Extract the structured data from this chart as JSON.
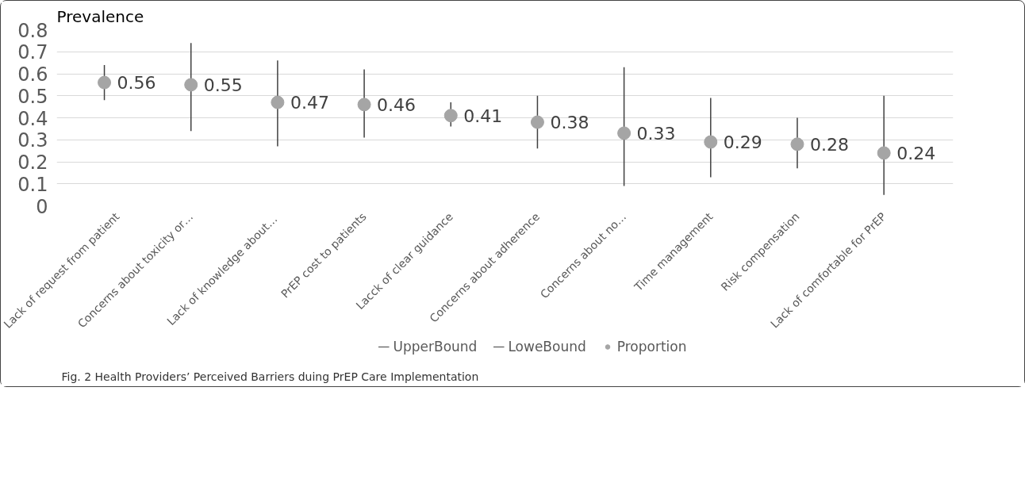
{
  "chart_data": {
    "type": "scatter",
    "ylabel": "Prevalence",
    "categories": [
      "Lack of request from patient",
      "Concerns about toxicity or…",
      "Lack of  knowledge about…",
      "PrEP cost to patients",
      "Lacck of clear guidance",
      "Concerns about adherence",
      "Concerns about no…",
      "Time management",
      "Risk compensation",
      "Lack of comfortable for PrEP"
    ],
    "series": [
      {
        "name": "UpperBound",
        "type": "line",
        "values": [
          null,
          null,
          null,
          null,
          null,
          null,
          null,
          null,
          null,
          null
        ]
      },
      {
        "name": "LoweBound",
        "type": "line",
        "values": [
          null,
          null,
          null,
          null,
          null,
          null,
          null,
          null,
          null,
          null
        ]
      },
      {
        "name": "Proportion",
        "color": "#a5a5a5",
        "values": [
          0.56,
          0.55,
          0.47,
          0.46,
          0.41,
          0.38,
          0.33,
          0.29,
          0.28,
          0.24
        ],
        "errors": [
          [
            0.48,
            0.64
          ],
          [
            0.34,
            0.74
          ],
          [
            0.27,
            0.66
          ],
          [
            0.31,
            0.62
          ],
          [
            0.36,
            0.47
          ],
          [
            0.26,
            0.5
          ],
          [
            0.09,
            0.63
          ],
          [
            0.13,
            0.49
          ],
          [
            0.17,
            0.4
          ],
          [
            0.05,
            0.5
          ]
        ],
        "value_labels": [
          "0.56",
          "0.55",
          "0.47",
          "0.46",
          "0.41",
          "0.38",
          "0.33",
          "0.29",
          "0.28",
          "0.24"
        ]
      }
    ],
    "ylim": [
      0,
      0.8
    ],
    "yticks": [
      0,
      0.1,
      0.2,
      0.3,
      0.4,
      0.5,
      0.6,
      0.7,
      0.8
    ],
    "grid": "y",
    "legend": "bottom",
    "marker": "circle",
    "annotations": [
      "Fig. 2 Health Providers’ Perceived Barriers duing PrEP Care Implementation"
    ]
  }
}
